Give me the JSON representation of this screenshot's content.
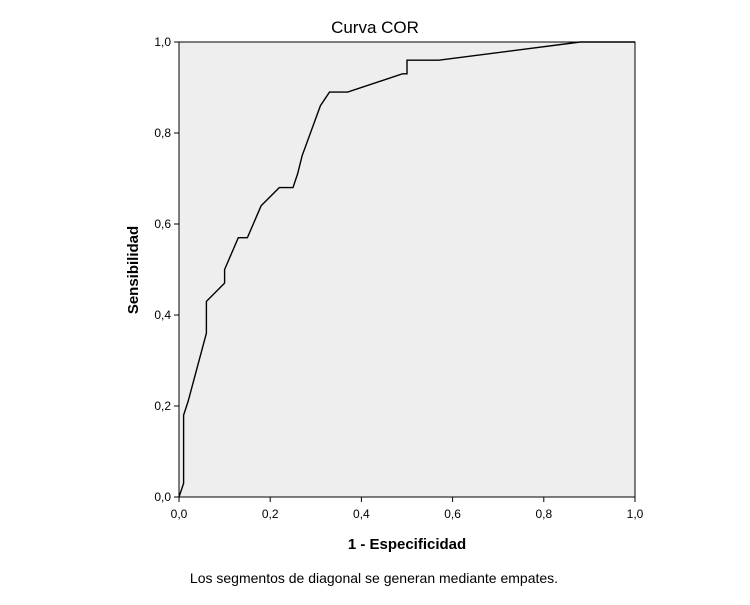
{
  "chart_data": {
    "type": "line",
    "title": "Curva COR",
    "xlabel": "1 - Especificidad",
    "ylabel": "Sensibilidad",
    "xlim": [
      0,
      1
    ],
    "ylim": [
      0,
      1
    ],
    "xticks": [
      "0,0",
      "0,2",
      "0,4",
      "0,6",
      "0,8",
      "1,0"
    ],
    "yticks": [
      "0,0",
      "0,2",
      "0,4",
      "0,6",
      "0,8",
      "1,0"
    ],
    "grid": false,
    "background": "#eeeeee",
    "line_color": "#000000",
    "series": [
      {
        "x": [
          0.0,
          0.01,
          0.01,
          0.02,
          0.06,
          0.06,
          0.1,
          0.1,
          0.13,
          0.15,
          0.18,
          0.22,
          0.25,
          0.26,
          0.27,
          0.31,
          0.33,
          0.37,
          0.49,
          0.5,
          0.5,
          0.57,
          0.88,
          1.0
        ],
        "y": [
          0.0,
          0.03,
          0.18,
          0.21,
          0.36,
          0.43,
          0.47,
          0.5,
          0.57,
          0.57,
          0.64,
          0.68,
          0.68,
          0.71,
          0.75,
          0.86,
          0.89,
          0.89,
          0.93,
          0.93,
          0.96,
          0.96,
          1.0,
          1.0
        ]
      }
    ],
    "footnote": "Los segmentos de diagonal se generan mediante empates."
  }
}
